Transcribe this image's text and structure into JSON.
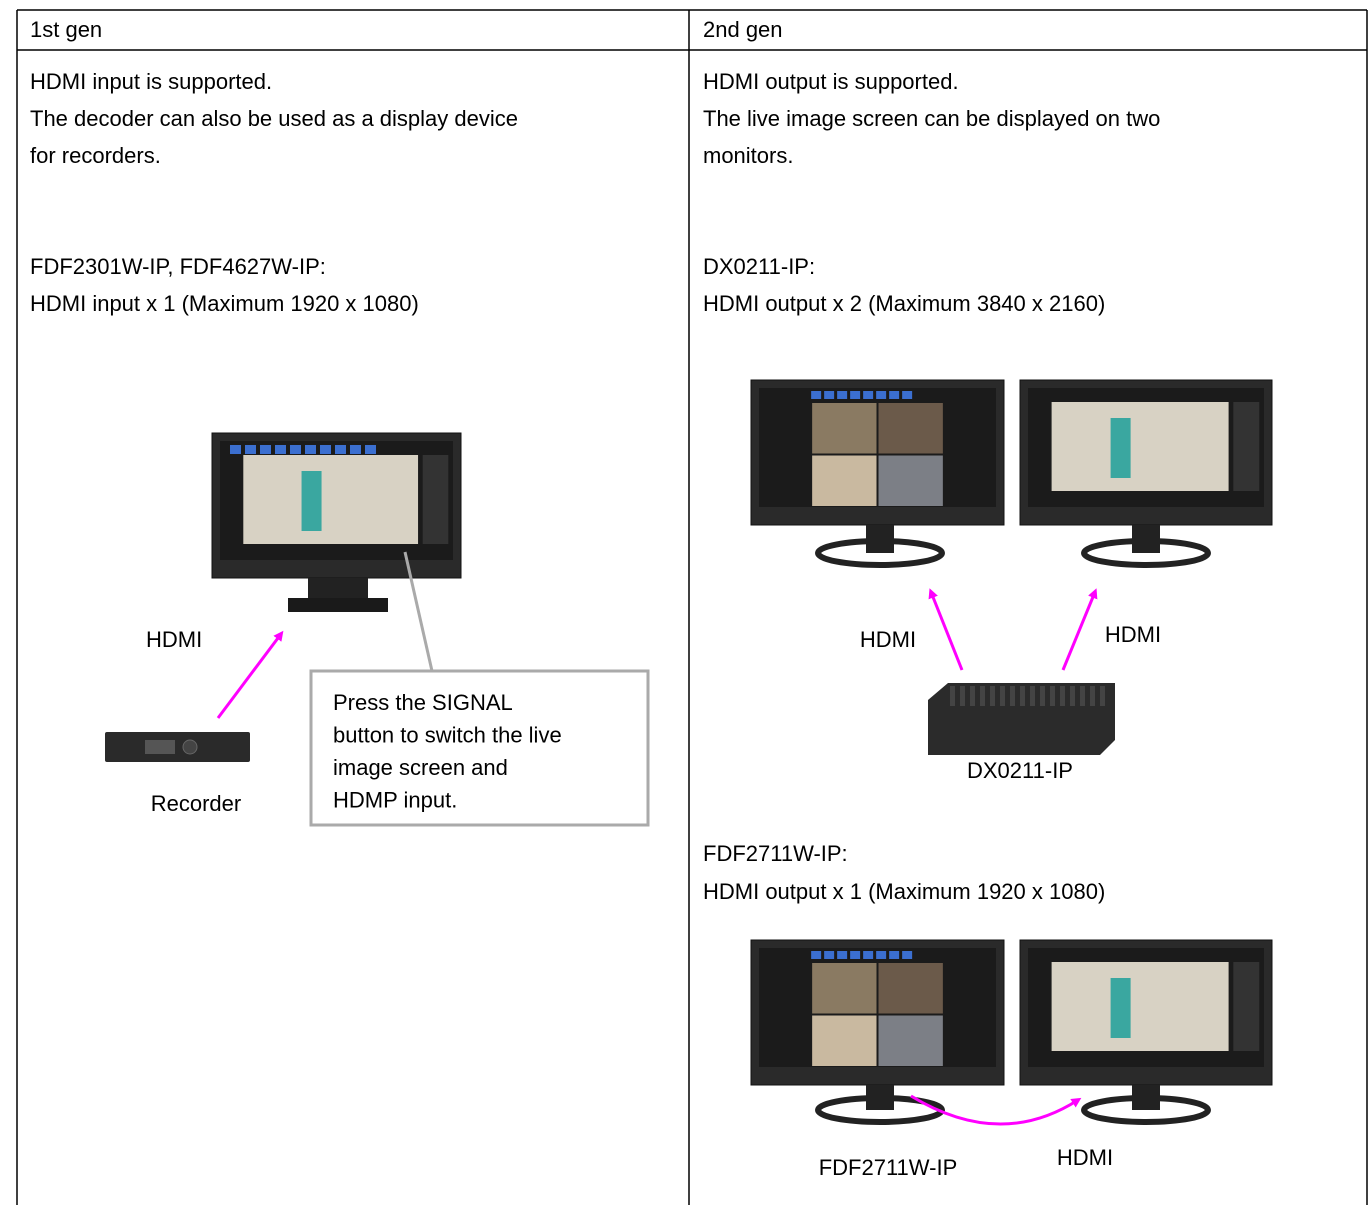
{
  "columns": [
    {
      "heading": "1st gen",
      "intro": [
        "HDMI input is supported.",
        "The decoder can also be used as a display device",
        "for recorders."
      ],
      "models": "FDF2301W-IP, FDF4627W-IP:",
      "spec": "HDMI input x 1 (Maximum 1920 x 1080)",
      "figure": {
        "connection": "HDMI",
        "device": "Recorder",
        "note": [
          "Press the SIGNAL",
          "button to switch the live",
          "image screen and",
          "HDMP input."
        ]
      }
    },
    {
      "heading": "2nd gen",
      "intro": [
        "HDMI output is supported.",
        "The live image screen can be displayed on two",
        "monitors."
      ],
      "models": "DX0211-IP:",
      "spec": "HDMI output x 2 (Maximum 3840 x 2160)",
      "figure": {
        "connections": [
          "HDMI",
          "HDMI"
        ],
        "device": "DX0211-IP"
      },
      "models2": "FDF2711W-IP:",
      "spec2": "HDMI output x 1 (Maximum 1920 x 1080)",
      "figure2": {
        "device": "FDF2711W-IP",
        "connection": "HDMI"
      }
    }
  ]
}
